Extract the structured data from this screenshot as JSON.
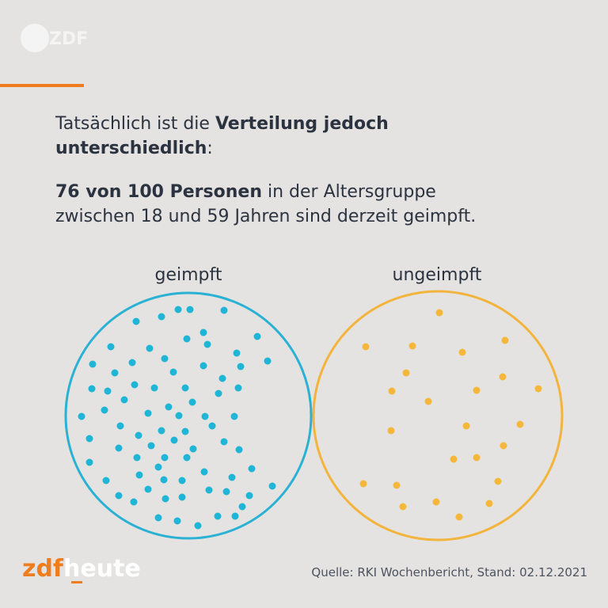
{
  "logo": "ZDF",
  "intro": {
    "line1_normal": "Tatsächlich ist die ",
    "line1_bold": "Verteilung jedoch",
    "line2_bold": "unterschiedlich",
    "line2_normal": ":"
  },
  "statement": {
    "bold": "76 von 100 Personen",
    "line1_normal": " in der Altersgruppe",
    "line2": "zwischen 18 und 59 Jahren sind derzeit geimpft."
  },
  "groups": [
    {
      "label": "geimpft"
    },
    {
      "label": "ungeimpft"
    }
  ],
  "footer": {
    "brand_zdf": "zdf",
    "brand_heute": "heute",
    "source": "Quelle: RKI Wochenbericht, Stand: 02.12.2021"
  }
}
